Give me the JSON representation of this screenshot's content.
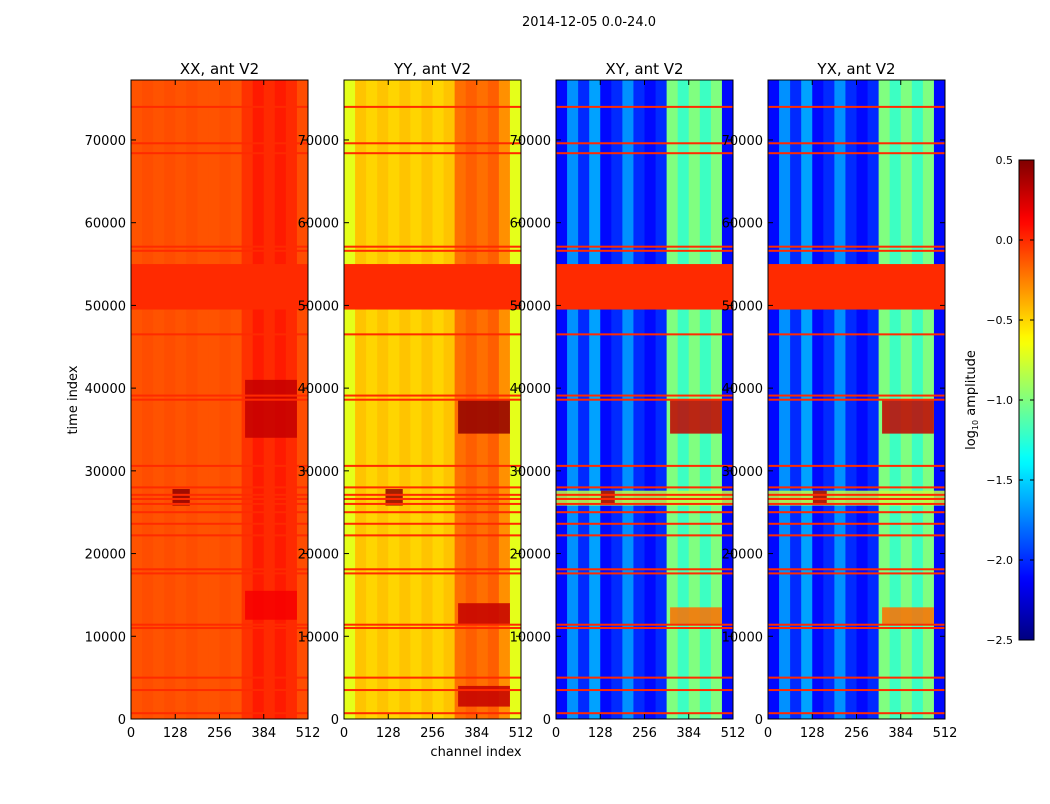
{
  "chart_data": {
    "type": "heatmap",
    "title": "2014-12-05 0.0-24.0",
    "xlabel": "channel index",
    "ylabel": "time index",
    "xlim": [
      0,
      512
    ],
    "ylim": [
      0,
      77250
    ],
    "xticks": [
      0,
      128,
      256,
      384,
      512
    ],
    "yticks": [
      0,
      10000,
      20000,
      30000,
      40000,
      50000,
      60000,
      70000
    ],
    "colormap": "jet",
    "clim": [
      -2.5,
      0.5
    ],
    "colorbar": {
      "label_main": "log",
      "label_sub": "10",
      "label_rest": " amplitude",
      "ticks": [
        "0.5",
        "0.0",
        "−0.5",
        "−1.0",
        "−1.5",
        "−2.0",
        "−2.5"
      ],
      "tick_values": [
        0.5,
        0.0,
        -0.5,
        -1.0,
        -1.5,
        -2.0,
        -2.5
      ]
    },
    "flagged_band": {
      "time_range": [
        49500,
        55000
      ],
      "value": 0.0
    },
    "flagged_rows": [
      700,
      3500,
      5000,
      11000,
      11400,
      17600,
      18100,
      22200,
      23600,
      25000,
      26000,
      26600,
      27100,
      28000,
      30600,
      38600,
      39100,
      46500,
      56600,
      57100,
      68400,
      69600,
      74000
    ],
    "panels": [
      {
        "title": "XX, ant V2",
        "channel_profile": [
          -0.12,
          -0.1,
          -0.12,
          -0.1,
          -0.12,
          -0.1,
          -0.12,
          -0.12,
          -0.1,
          -0.12,
          -0.02,
          0.05,
          0.0,
          0.05,
          0.0,
          -0.1
        ],
        "blobs": [
          {
            "time": [
              34000,
              41000
            ],
            "channels": [
              330,
              480
            ],
            "value": 0.3
          },
          {
            "time": [
              12000,
              15500
            ],
            "channels": [
              330,
              480
            ],
            "value": 0.15
          },
          {
            "time": [
              25800,
              27800
            ],
            "channels": [
              120,
              170
            ],
            "value": 0.45
          }
        ]
      },
      {
        "title": "YY, ant V2",
        "channel_profile": [
          -0.7,
          -0.45,
          -0.5,
          -0.45,
          -0.5,
          -0.45,
          -0.5,
          -0.45,
          -0.5,
          -0.45,
          -0.2,
          -0.15,
          -0.2,
          -0.15,
          -0.3,
          -0.7
        ],
        "blobs": [
          {
            "time": [
              34500,
              38500
            ],
            "channels": [
              330,
              480
            ],
            "value": 0.45
          },
          {
            "time": [
              1500,
              4000
            ],
            "channels": [
              330,
              480
            ],
            "value": 0.3
          },
          {
            "time": [
              11500,
              14000
            ],
            "channels": [
              330,
              480
            ],
            "value": 0.3
          },
          {
            "time": [
              25800,
              27800
            ],
            "channels": [
              120,
              170
            ],
            "value": 0.45
          }
        ]
      },
      {
        "title": "XY, ant V2",
        "channel_profile": [
          -2.1,
          -1.7,
          -2.0,
          -1.65,
          -2.1,
          -2.0,
          -1.7,
          -2.0,
          -2.1,
          -2.0,
          -1.0,
          -1.2,
          -1.0,
          -1.2,
          -1.0,
          -2.1
        ],
        "blobs": [
          {
            "time": [
              34500,
              38500
            ],
            "channels": [
              330,
              480
            ],
            "value": 0.3
          },
          {
            "time": [
              11500,
              13500
            ],
            "channels": [
              330,
              480
            ],
            "value": -0.2
          },
          {
            "time": [
              25800,
              27600
            ],
            "channels": [
              0,
              512
            ],
            "value": -0.8
          },
          {
            "time": [
              26000,
              27600
            ],
            "channels": [
              130,
              170
            ],
            "value": 0.4
          }
        ]
      },
      {
        "title": "YX, ant V2",
        "channel_profile": [
          -2.1,
          -1.7,
          -2.0,
          -1.65,
          -2.1,
          -2.0,
          -1.7,
          -2.0,
          -2.1,
          -2.0,
          -1.0,
          -1.2,
          -1.0,
          -1.2,
          -1.0,
          -2.1
        ],
        "blobs": [
          {
            "time": [
              34500,
              38500
            ],
            "channels": [
              330,
              480
            ],
            "value": 0.3
          },
          {
            "time": [
              11500,
              13500
            ],
            "channels": [
              330,
              480
            ],
            "value": -0.2
          },
          {
            "time": [
              25800,
              27600
            ],
            "channels": [
              0,
              512
            ],
            "value": -0.8
          },
          {
            "time": [
              26000,
              27600
            ],
            "channels": [
              130,
              170
            ],
            "value": 0.4
          }
        ]
      }
    ]
  }
}
